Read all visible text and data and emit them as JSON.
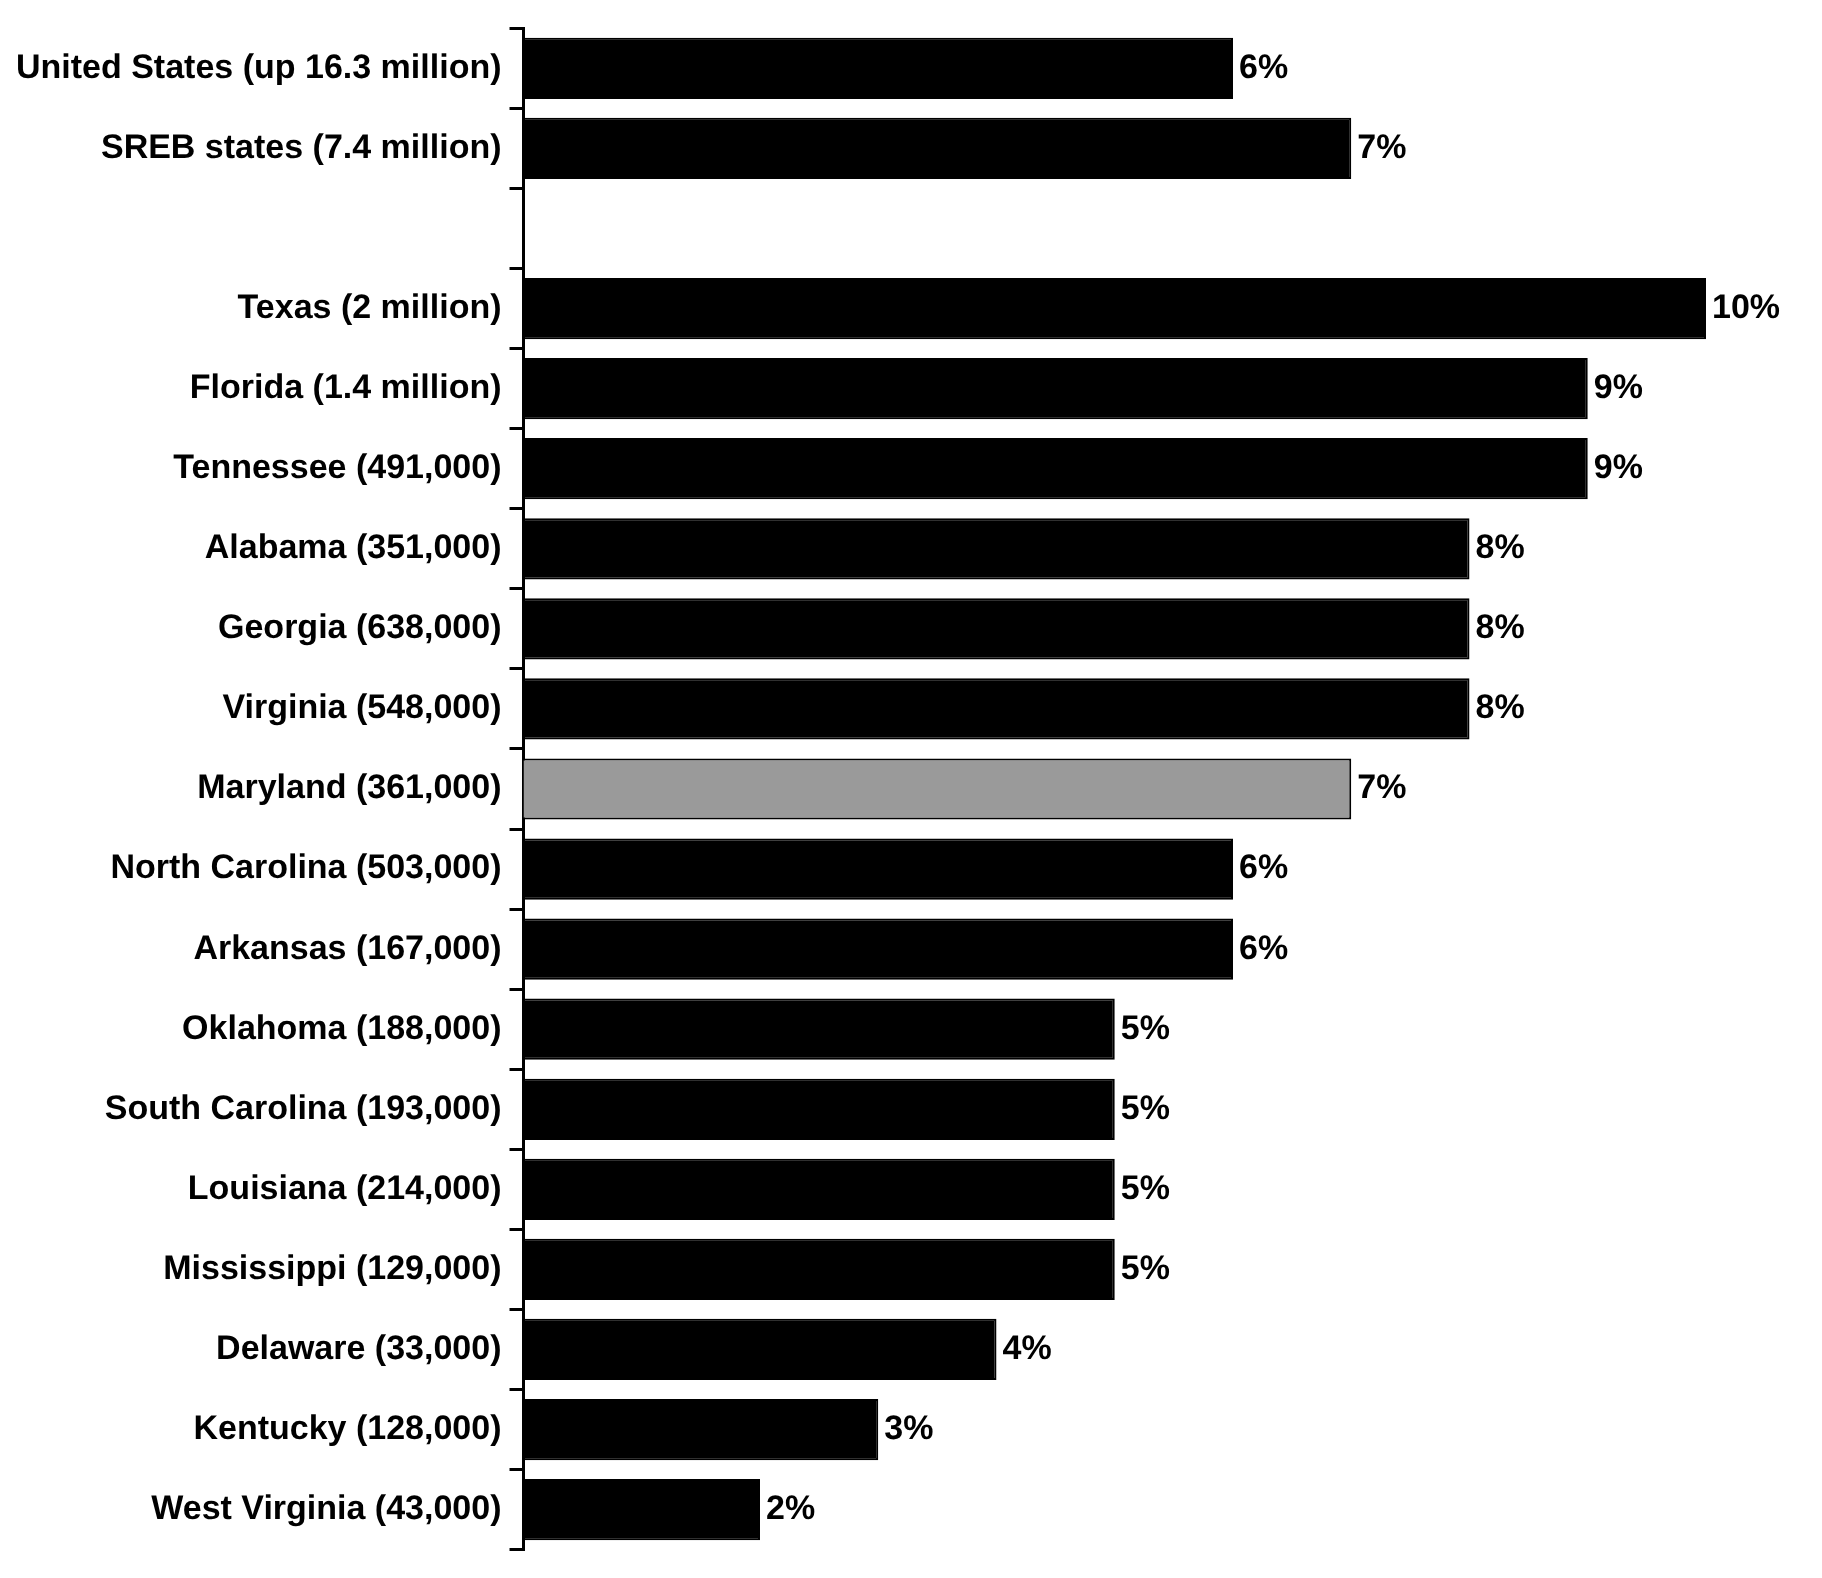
{
  "chart_data": {
    "type": "bar",
    "orientation": "horizontal",
    "categories": [
      "United States (up 16.3 million)",
      "SREB states (7.4 million)",
      null,
      "Texas (2 million)",
      "Florida (1.4 million)",
      "Tennessee (491,000)",
      "Alabama (351,000)",
      "Georgia (638,000)",
      "Virginia (548,000)",
      "Maryland (361,000)",
      "North Carolina (503,000)",
      "Arkansas (167,000)",
      "Oklahoma (188,000)",
      "South Carolina (193,000)",
      "Louisiana (214,000)",
      "Mississippi (129,000)",
      "Delaware (33,000)",
      "Kentucky (128,000)",
      "West Virginia (43,000)"
    ],
    "values": [
      6,
      7,
      null,
      10,
      9,
      9,
      8,
      8,
      8,
      7,
      6,
      6,
      5,
      5,
      5,
      5,
      4,
      3,
      2
    ],
    "value_labels": [
      "6%",
      "7%",
      null,
      "10%",
      "9%",
      "9%",
      "8%",
      "8%",
      "8%",
      "7%",
      "6%",
      "6%",
      "5%",
      "5%",
      "5%",
      "5%",
      "4%",
      "3%",
      "2%"
    ],
    "colors": [
      "#000000",
      "#000000",
      "#000000",
      "#000000",
      "#000000",
      "#000000",
      "#000000",
      "#000000",
      "#000000",
      "#9a9a9a",
      "#000000",
      "#000000",
      "#000000",
      "#000000",
      "#000000",
      "#000000",
      "#000000",
      "#000000",
      "#000000"
    ],
    "xlim": [
      0,
      10
    ],
    "grid": false,
    "legend": false,
    "tick_labels": "y"
  }
}
